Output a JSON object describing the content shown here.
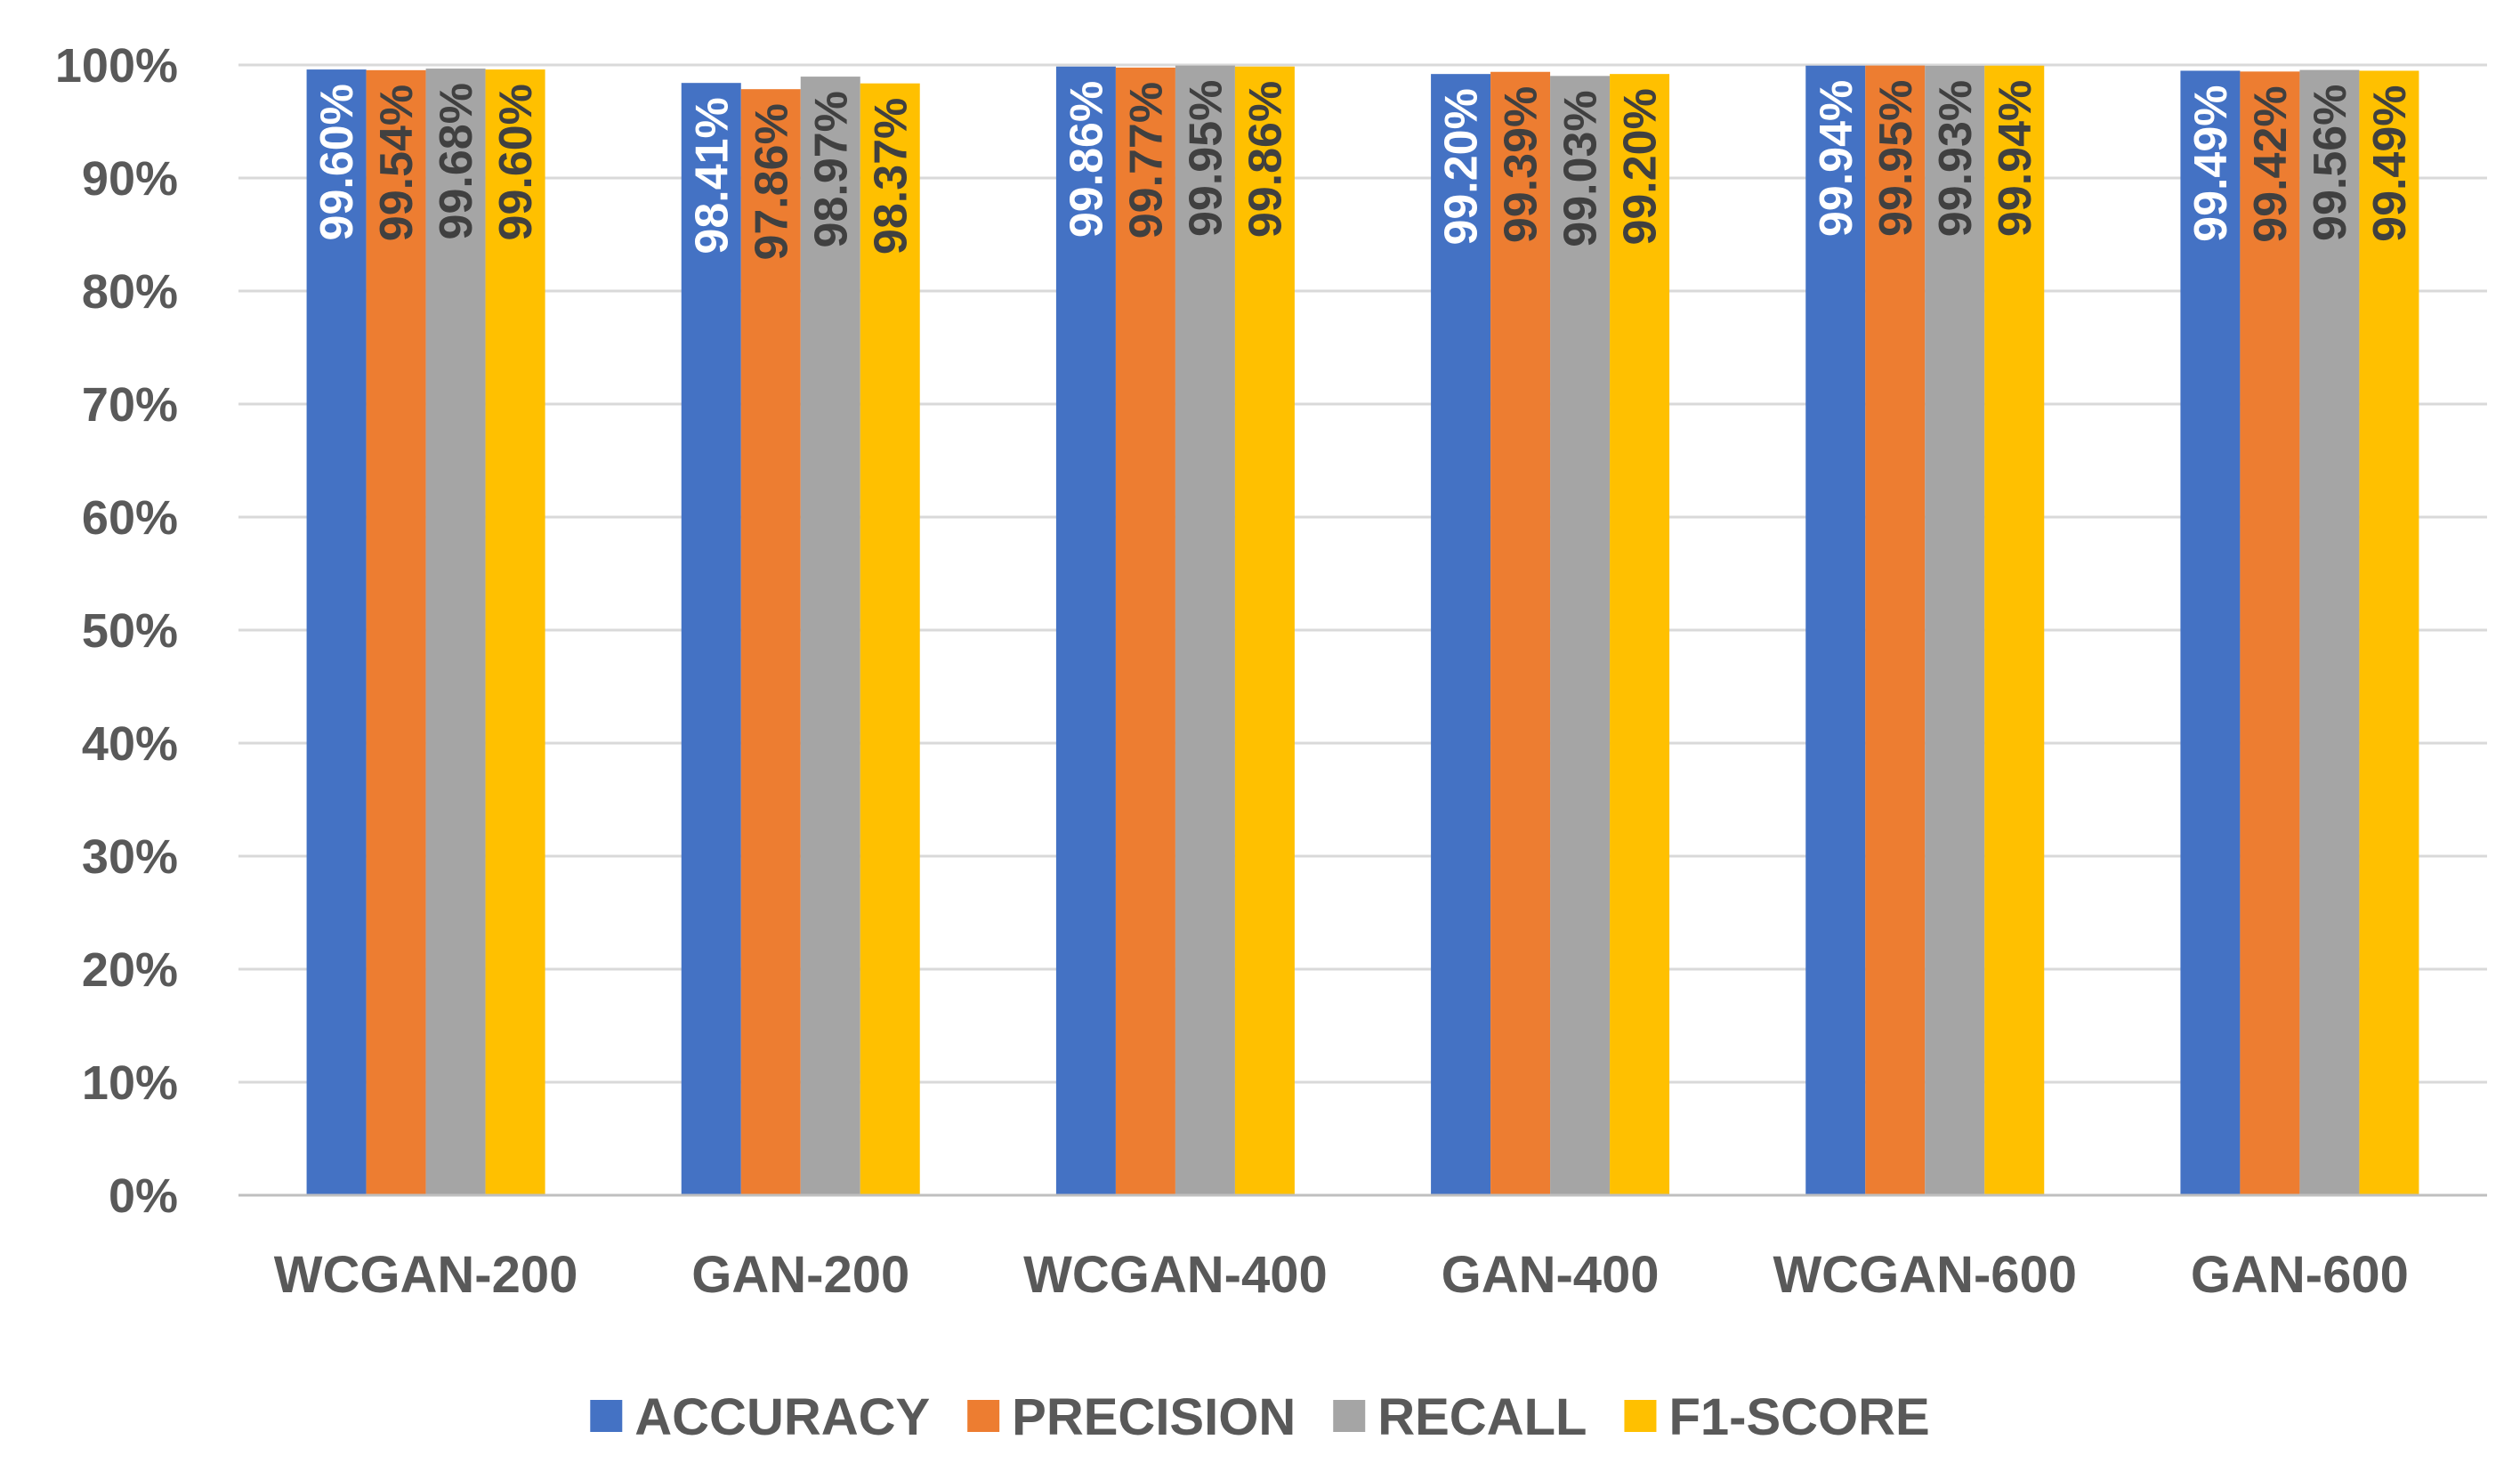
{
  "chart_data": {
    "type": "bar",
    "title": "",
    "xlabel": "",
    "ylabel": "",
    "categories": [
      "WCGAN-200",
      "GAN-200",
      "WCGAN-400",
      "GAN-400",
      "WCGAN-600",
      "GAN-600"
    ],
    "series": [
      {
        "name": "ACCURACY",
        "color": "#4472C4",
        "label_color": "#FFFFFF",
        "values": [
          99.6,
          98.41,
          99.86,
          99.2,
          99.94,
          99.49
        ],
        "labels": [
          "99.60%",
          "98.41%",
          "99.86%",
          "99.20%",
          "99.94%",
          "99.49%"
        ]
      },
      {
        "name": "PRECISION",
        "color": "#ED7D31",
        "label_color": "#404040",
        "values": [
          99.54,
          97.86,
          99.77,
          99.39,
          99.95,
          99.42
        ],
        "labels": [
          "99.54%",
          "97.86%",
          "99.77%",
          "99.39%",
          "99.95%",
          "99.42%"
        ]
      },
      {
        "name": "RECALL",
        "color": "#A5A5A5",
        "label_color": "#404040",
        "values": [
          99.68,
          98.97,
          99.95,
          99.03,
          99.93,
          99.56
        ],
        "labels": [
          "99.68%",
          "98.97%",
          "99.95%",
          "99.03%",
          "99.93%",
          "99.56%"
        ]
      },
      {
        "name": "F1-SCORE",
        "color": "#FFC000",
        "label_color": "#404040",
        "values": [
          99.6,
          98.37,
          99.86,
          99.2,
          99.94,
          99.49
        ],
        "labels": [
          "99.60%",
          "98.37%",
          "99.86%",
          "99.20%",
          "99.94%",
          "99.49%"
        ]
      }
    ],
    "ylim": [
      0,
      100
    ],
    "yticks": [
      0,
      10,
      20,
      30,
      40,
      50,
      60,
      70,
      80,
      90,
      100
    ],
    "ytick_labels": [
      "0%",
      "10%",
      "20%",
      "30%",
      "40%",
      "50%",
      "60%",
      "70%",
      "80%",
      "90%",
      "100%"
    ],
    "grid": true,
    "legend_position": "bottom-center",
    "data_label_orientation": "vertical",
    "grid_color": "#D9D9D9",
    "axis_color": "#BFBFBF"
  }
}
